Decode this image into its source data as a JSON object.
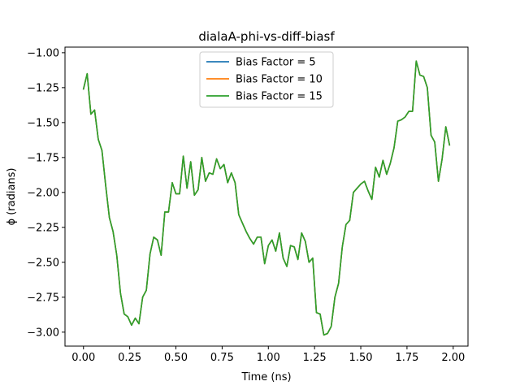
{
  "chart_data": {
    "type": "line",
    "title": "dialaA-phi-vs-diff-biasf",
    "xlabel": "Time (ns)",
    "ylabel": "ϕ (radians)",
    "xlim": [
      -0.1,
      2.08
    ],
    "ylim": [
      -3.1,
      -0.96
    ],
    "xticks": [
      0.0,
      0.25,
      0.5,
      0.75,
      1.0,
      1.25,
      1.5,
      1.75,
      2.0
    ],
    "xtick_labels": [
      "0.00",
      "0.25",
      "0.50",
      "0.75",
      "1.00",
      "1.25",
      "1.50",
      "1.75",
      "2.00"
    ],
    "yticks": [
      -3.0,
      -2.75,
      -2.5,
      -2.25,
      -2.0,
      -1.75,
      -1.5,
      -1.25,
      -1.0
    ],
    "ytick_labels": [
      "−3.00",
      "−2.75",
      "−2.50",
      "−2.25",
      "−2.00",
      "−1.75",
      "−1.50",
      "−1.25",
      "−1.00"
    ],
    "legend_position": "upper-center",
    "grid": false,
    "x": [
      0.0,
      0.02,
      0.04,
      0.06,
      0.08,
      0.1,
      0.12,
      0.14,
      0.16,
      0.18,
      0.2,
      0.22,
      0.24,
      0.26,
      0.28,
      0.3,
      0.32,
      0.34,
      0.36,
      0.38,
      0.4,
      0.42,
      0.44,
      0.46,
      0.48,
      0.5,
      0.52,
      0.54,
      0.56,
      0.58,
      0.6,
      0.62,
      0.64,
      0.66,
      0.68,
      0.7,
      0.72,
      0.74,
      0.76,
      0.78,
      0.8,
      0.82,
      0.84,
      0.86,
      0.88,
      0.9,
      0.92,
      0.94,
      0.96,
      0.98,
      1.0,
      1.02,
      1.04,
      1.06,
      1.08,
      1.1,
      1.12,
      1.14,
      1.16,
      1.18,
      1.2,
      1.22,
      1.24,
      1.26,
      1.28,
      1.3,
      1.32,
      1.34,
      1.36,
      1.38,
      1.4,
      1.42,
      1.44,
      1.46,
      1.48,
      1.5,
      1.52,
      1.54,
      1.56,
      1.58,
      1.6,
      1.62,
      1.64,
      1.66,
      1.68,
      1.7,
      1.72,
      1.74,
      1.76,
      1.78,
      1.8,
      1.82,
      1.84,
      1.86,
      1.88,
      1.9,
      1.92,
      1.94,
      1.96,
      1.98
    ],
    "series": [
      {
        "name": "Bias Factor = 5",
        "color": "#1f77b4",
        "values": [
          -1.26,
          -1.15,
          -1.44,
          -1.41,
          -1.62,
          -1.7,
          -1.95,
          -2.18,
          -2.28,
          -2.45,
          -2.72,
          -2.87,
          -2.89,
          -2.95,
          -2.9,
          -2.94,
          -2.75,
          -2.7,
          -2.44,
          -2.32,
          -2.34,
          -2.45,
          -2.14,
          -2.14,
          -1.93,
          -2.01,
          -2.01,
          -1.74,
          -1.97,
          -1.78,
          -2.02,
          -1.98,
          -1.75,
          -1.92,
          -1.86,
          -1.87,
          -1.76,
          -1.83,
          -1.8,
          -1.93,
          -1.86,
          -1.93,
          -2.16,
          -2.22,
          -2.28,
          -2.33,
          -2.37,
          -2.32,
          -2.32,
          -2.51,
          -2.38,
          -2.34,
          -2.42,
          -2.29,
          -2.47,
          -2.53,
          -2.38,
          -2.39,
          -2.48,
          -2.29,
          -2.35,
          -2.5,
          -2.47,
          -2.86,
          -2.87,
          -3.02,
          -3.01,
          -2.96,
          -2.75,
          -2.65,
          -2.39,
          -2.23,
          -2.2,
          -2.0,
          -1.97,
          -1.94,
          -1.92,
          -1.99,
          -2.05,
          -1.82,
          -1.89,
          -1.77,
          -1.87,
          -1.79,
          -1.68,
          -1.49,
          -1.48,
          -1.46,
          -1.42,
          -1.42,
          -1.06,
          -1.16,
          -1.17,
          -1.25,
          -1.59,
          -1.64,
          -1.92,
          -1.76,
          -1.53,
          -1.66
        ]
      },
      {
        "name": "Bias Factor = 10",
        "color": "#ff7f0e",
        "values": [
          -1.26,
          -1.15,
          -1.44,
          -1.41,
          -1.62,
          -1.7,
          -1.95,
          -2.18,
          -2.28,
          -2.45,
          -2.72,
          -2.87,
          -2.89,
          -2.95,
          -2.9,
          -2.94,
          -2.75,
          -2.7,
          -2.44,
          -2.32,
          -2.34,
          -2.45,
          -2.14,
          -2.14,
          -1.93,
          -2.01,
          -2.01,
          -1.74,
          -1.97,
          -1.78,
          -2.02,
          -1.98,
          -1.75,
          -1.92,
          -1.86,
          -1.87,
          -1.76,
          -1.83,
          -1.8,
          -1.93,
          -1.86,
          -1.93,
          -2.16,
          -2.22,
          -2.28,
          -2.33,
          -2.37,
          -2.32,
          -2.32,
          -2.51,
          -2.38,
          -2.34,
          -2.42,
          -2.29,
          -2.47,
          -2.53,
          -2.38,
          -2.39,
          -2.48,
          -2.29,
          -2.35,
          -2.5,
          -2.47,
          -2.86,
          -2.87,
          -3.02,
          -3.01,
          -2.96,
          -2.75,
          -2.65,
          -2.39,
          -2.23,
          -2.2,
          -2.0,
          -1.97,
          -1.94,
          -1.92,
          -1.99,
          -2.05,
          -1.82,
          -1.89,
          -1.77,
          -1.87,
          -1.79,
          -1.68,
          -1.49,
          -1.48,
          -1.46,
          -1.42,
          -1.42,
          -1.06,
          -1.16,
          -1.17,
          -1.25,
          -1.59,
          -1.64,
          -1.92,
          -1.76,
          -1.53,
          -1.66
        ]
      },
      {
        "name": "Bias Factor = 15",
        "color": "#2ca02c",
        "values": [
          -1.26,
          -1.15,
          -1.44,
          -1.41,
          -1.62,
          -1.7,
          -1.95,
          -2.18,
          -2.28,
          -2.45,
          -2.72,
          -2.87,
          -2.89,
          -2.95,
          -2.9,
          -2.94,
          -2.75,
          -2.7,
          -2.44,
          -2.32,
          -2.34,
          -2.45,
          -2.14,
          -2.14,
          -1.93,
          -2.01,
          -2.01,
          -1.74,
          -1.97,
          -1.78,
          -2.02,
          -1.98,
          -1.75,
          -1.92,
          -1.86,
          -1.87,
          -1.76,
          -1.83,
          -1.8,
          -1.93,
          -1.86,
          -1.93,
          -2.16,
          -2.22,
          -2.28,
          -2.33,
          -2.37,
          -2.32,
          -2.32,
          -2.51,
          -2.38,
          -2.34,
          -2.42,
          -2.29,
          -2.47,
          -2.53,
          -2.38,
          -2.39,
          -2.48,
          -2.29,
          -2.35,
          -2.5,
          -2.47,
          -2.86,
          -2.87,
          -3.02,
          -3.01,
          -2.96,
          -2.75,
          -2.65,
          -2.39,
          -2.23,
          -2.2,
          -2.0,
          -1.97,
          -1.94,
          -1.92,
          -1.99,
          -2.05,
          -1.82,
          -1.89,
          -1.77,
          -1.87,
          -1.79,
          -1.68,
          -1.49,
          -1.48,
          -1.46,
          -1.42,
          -1.42,
          -1.06,
          -1.16,
          -1.17,
          -1.25,
          -1.59,
          -1.64,
          -1.92,
          -1.76,
          -1.53,
          -1.66
        ]
      }
    ]
  }
}
